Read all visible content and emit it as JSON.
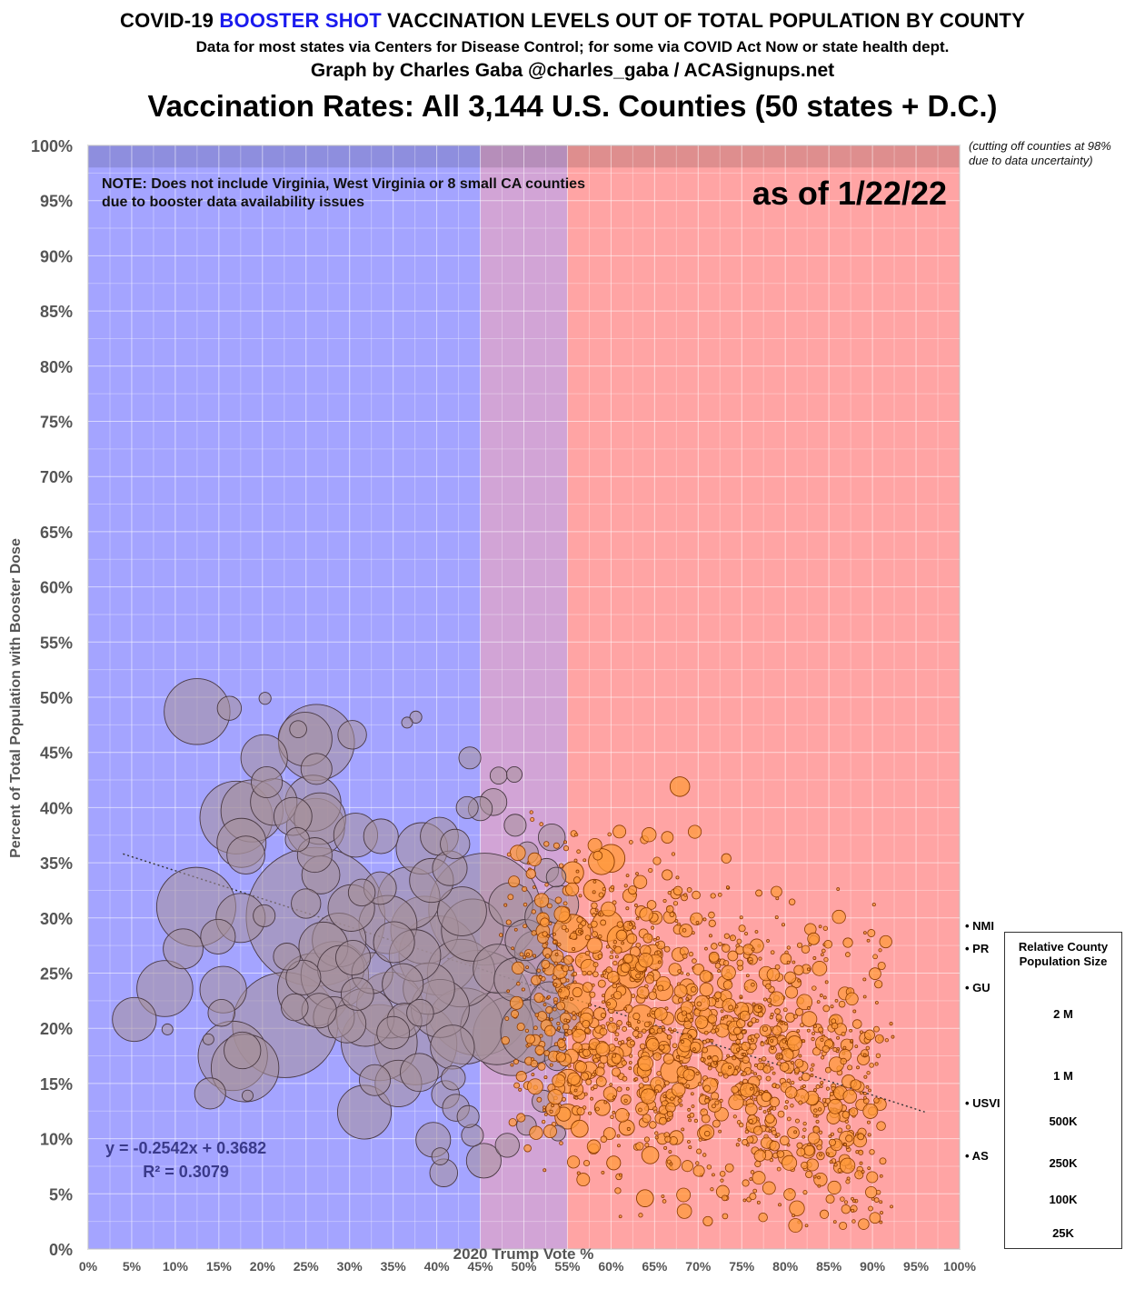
{
  "header": {
    "title_pre": "COVID-19 ",
    "title_highlight": "BOOSTER SHOT",
    "title_post": " VACCINATION LEVELS OUT OF TOTAL POPULATION BY COUNTY",
    "subtitle": "Data for most states via Centers for Disease Control; for some via COVID Act Now or state health dept.",
    "byline": "Graph by Charles Gaba @charles_gaba / ACASignups.net",
    "main_title": "Vaccination Rates: All 3,144 U.S. Counties (50 states + D.C.)"
  },
  "annotations": {
    "note_line1": "NOTE: Does not include Virginia, West Virginia or 8 small CA counties",
    "note_line2": "due to booster data availability issues",
    "as_of": "as of 1/22/22",
    "cutoff_line1": "(cutting off counties at 98%",
    "cutoff_line2": "due to data uncertainty)",
    "equation": "y = -0.2542x + 0.3682",
    "r_squared": "R² = 0.3079"
  },
  "territories": [
    {
      "label": "• NMI",
      "value": 29.5
    },
    {
      "label": "• PR",
      "value": 27.0
    },
    {
      "label": "• GU",
      "value": 23.7
    },
    {
      "label": "• USVI",
      "value": 13.2
    },
    {
      "label": "• AS",
      "value": 8.4
    }
  ],
  "legend": {
    "title_line1": "Relative County",
    "title_line2": "Population Size",
    "items": [
      {
        "label": "2 M",
        "population": 2000000
      },
      {
        "label": "1 M",
        "population": 1000000
      },
      {
        "label": "500K",
        "population": 500000
      },
      {
        "label": "250K",
        "population": 250000
      },
      {
        "label": "100K",
        "population": 100000
      },
      {
        "label": "25K",
        "population": 25000
      }
    ]
  },
  "colors": {
    "blue_zone": "#a4a4ff",
    "purple_zone": "#d2a4d6",
    "red_zone": "#ffa4a4",
    "blue_point": "#a6909a",
    "red_point": "#ff9a3c",
    "title_highlight": "#1a1aee"
  },
  "chart_data": {
    "type": "scatter",
    "xlabel": "2020 Trump Vote %",
    "ylabel": "Percent of Total Population with Booster Dose",
    "xlim": [
      0,
      100
    ],
    "ylim": [
      0,
      100
    ],
    "x_ticks": [
      "0%",
      "5%",
      "10%",
      "15%",
      "20%",
      "25%",
      "30%",
      "35%",
      "40%",
      "45%",
      "50%",
      "55%",
      "60%",
      "65%",
      "70%",
      "75%",
      "80%",
      "85%",
      "90%",
      "95%",
      "100%"
    ],
    "y_ticks": [
      "0%",
      "5%",
      "10%",
      "15%",
      "20%",
      "25%",
      "30%",
      "35%",
      "40%",
      "45%",
      "50%",
      "55%",
      "60%",
      "65%",
      "70%",
      "75%",
      "80%",
      "85%",
      "90%",
      "95%",
      "100%"
    ],
    "grid": true,
    "shaded_zones": [
      {
        "from": 0,
        "to": 45,
        "color": "blue"
      },
      {
        "from": 45,
        "to": 55,
        "color": "purple"
      },
      {
        "from": 55,
        "to": 100,
        "color": "red"
      }
    ],
    "cutoff_y": 98,
    "trendline": {
      "slope": -0.2542,
      "intercept": 0.3682,
      "x_range": [
        4,
        96
      ]
    },
    "legend_position": "right",
    "points": [
      {
        "x": 12.5,
        "y": 48.7,
        "pop": 900000
      },
      {
        "x": 16.2,
        "y": 49.0,
        "pop": 120000
      },
      {
        "x": 20.2,
        "y": 44.5,
        "pop": 450000
      },
      {
        "x": 24.1,
        "y": 47.1,
        "pop": 60000
      },
      {
        "x": 24.9,
        "y": 46.2,
        "pop": 600000
      },
      {
        "x": 26.2,
        "y": 45.9,
        "pop": 1200000
      },
      {
        "x": 26.2,
        "y": 43.5,
        "pop": 200000
      },
      {
        "x": 30.3,
        "y": 46.6,
        "pop": 170000
      },
      {
        "x": 20.5,
        "y": 42.3,
        "pop": 200000
      },
      {
        "x": 17.0,
        "y": 39.1,
        "pop": 1100000
      },
      {
        "x": 18.8,
        "y": 39.7,
        "pop": 800000
      },
      {
        "x": 21.3,
        "y": 40.5,
        "pop": 450000
      },
      {
        "x": 23.5,
        "y": 39.2,
        "pop": 300000
      },
      {
        "x": 25.8,
        "y": 40.4,
        "pop": 650000
      },
      {
        "x": 26.1,
        "y": 38.2,
        "pop": 700000
      },
      {
        "x": 26.6,
        "y": 39.0,
        "pop": 550000
      },
      {
        "x": 17.6,
        "y": 36.8,
        "pop": 500000
      },
      {
        "x": 18.1,
        "y": 35.7,
        "pop": 300000
      },
      {
        "x": 24.0,
        "y": 37.1,
        "pop": 120000
      },
      {
        "x": 26.0,
        "y": 35.7,
        "pop": 250000
      },
      {
        "x": 30.7,
        "y": 37.5,
        "pop": 400000
      },
      {
        "x": 33.6,
        "y": 37.4,
        "pop": 250000
      },
      {
        "x": 12.4,
        "y": 31.0,
        "pop": 1300000
      },
      {
        "x": 17.5,
        "y": 30.0,
        "pop": 500000
      },
      {
        "x": 14.9,
        "y": 28.3,
        "pop": 250000
      },
      {
        "x": 10.9,
        "y": 27.2,
        "pop": 330000
      },
      {
        "x": 8.8,
        "y": 23.6,
        "pop": 650000
      },
      {
        "x": 15.5,
        "y": 23.5,
        "pop": 450000
      },
      {
        "x": 5.3,
        "y": 20.8,
        "pop": 400000
      },
      {
        "x": 15.3,
        "y": 21.4,
        "pop": 150000
      },
      {
        "x": 16.6,
        "y": 17.5,
        "pop": 1000000
      },
      {
        "x": 18.0,
        "y": 16.4,
        "pop": 950000
      },
      {
        "x": 17.7,
        "y": 18.0,
        "pop": 280000
      },
      {
        "x": 14.0,
        "y": 14.1,
        "pop": 200000
      },
      {
        "x": 22.6,
        "y": 20.3,
        "pop": 2300000
      },
      {
        "x": 26.1,
        "y": 30.1,
        "pop": 4000000
      },
      {
        "x": 25.9,
        "y": 23.5,
        "pop": 1100000
      },
      {
        "x": 28.3,
        "y": 24.8,
        "pop": 950000
      },
      {
        "x": 27.0,
        "y": 27.4,
        "pop": 500000
      },
      {
        "x": 25.0,
        "y": 31.3,
        "pop": 180000
      },
      {
        "x": 26.7,
        "y": 33.9,
        "pop": 300000
      },
      {
        "x": 28.8,
        "y": 28.0,
        "pop": 600000
      },
      {
        "x": 30.2,
        "y": 30.9,
        "pop": 450000
      },
      {
        "x": 29.7,
        "y": 20.4,
        "pop": 300000
      },
      {
        "x": 31.8,
        "y": 21.0,
        "pop": 700000
      },
      {
        "x": 32.6,
        "y": 25.0,
        "pop": 350000
      },
      {
        "x": 33.4,
        "y": 18.7,
        "pop": 1200000
      },
      {
        "x": 34.6,
        "y": 22.1,
        "pop": 900000
      },
      {
        "x": 31.7,
        "y": 12.4,
        "pop": 600000
      },
      {
        "x": 32.9,
        "y": 15.3,
        "pop": 200000
      },
      {
        "x": 35.6,
        "y": 15.0,
        "pop": 450000
      },
      {
        "x": 37.6,
        "y": 18.6,
        "pop": 1400000
      },
      {
        "x": 38.0,
        "y": 16.0,
        "pop": 300000
      },
      {
        "x": 34.4,
        "y": 29.4,
        "pop": 700000
      },
      {
        "x": 36.8,
        "y": 31.8,
        "pop": 800000
      },
      {
        "x": 38.6,
        "y": 28.9,
        "pop": 950000
      },
      {
        "x": 40.2,
        "y": 26.6,
        "pop": 1300000
      },
      {
        "x": 39.4,
        "y": 33.4,
        "pop": 400000
      },
      {
        "x": 40.3,
        "y": 37.4,
        "pop": 300000
      },
      {
        "x": 38.3,
        "y": 36.3,
        "pop": 550000
      },
      {
        "x": 42.1,
        "y": 36.7,
        "pop": 180000
      },
      {
        "x": 41.5,
        "y": 34.5,
        "pop": 250000
      },
      {
        "x": 42.9,
        "y": 30.6,
        "pop": 500000
      },
      {
        "x": 44.1,
        "y": 28.9,
        "pop": 800000
      },
      {
        "x": 45.5,
        "y": 30.8,
        "pop": 2600000
      },
      {
        "x": 42.8,
        "y": 25.0,
        "pop": 950000
      },
      {
        "x": 44.8,
        "y": 22.3,
        "pop": 2300000
      },
      {
        "x": 43.2,
        "y": 20.2,
        "pop": 1200000
      },
      {
        "x": 46.9,
        "y": 20.0,
        "pop": 1100000
      },
      {
        "x": 48.7,
        "y": 19.3,
        "pop": 1300000
      },
      {
        "x": 51.0,
        "y": 19.7,
        "pop": 850000
      },
      {
        "x": 40.4,
        "y": 21.8,
        "pop": 700000
      },
      {
        "x": 39.1,
        "y": 23.6,
        "pop": 550000
      },
      {
        "x": 41.8,
        "y": 18.3,
        "pop": 400000
      },
      {
        "x": 37.5,
        "y": 26.6,
        "pop": 550000
      },
      {
        "x": 36.1,
        "y": 24.0,
        "pop": 350000
      },
      {
        "x": 35.1,
        "y": 27.8,
        "pop": 350000
      },
      {
        "x": 33.5,
        "y": 32.7,
        "pop": 220000
      },
      {
        "x": 31.4,
        "y": 32.3,
        "pop": 150000
      },
      {
        "x": 29.0,
        "y": 25.4,
        "pop": 450000
      },
      {
        "x": 30.4,
        "y": 26.4,
        "pop": 250000
      },
      {
        "x": 30.9,
        "y": 23.1,
        "pop": 220000
      },
      {
        "x": 28.2,
        "y": 21.0,
        "pop": 350000
      },
      {
        "x": 26.5,
        "y": 21.6,
        "pop": 250000
      },
      {
        "x": 23.7,
        "y": 21.9,
        "pop": 150000
      },
      {
        "x": 22.8,
        "y": 26.5,
        "pop": 150000
      },
      {
        "x": 24.7,
        "y": 24.6,
        "pop": 250000
      },
      {
        "x": 20.2,
        "y": 30.2,
        "pop": 100000
      },
      {
        "x": 35.0,
        "y": 19.6,
        "pop": 220000
      },
      {
        "x": 36.3,
        "y": 20.7,
        "pop": 250000
      },
      {
        "x": 38.1,
        "y": 21.4,
        "pop": 150000
      },
      {
        "x": 39.6,
        "y": 9.9,
        "pop": 250000
      },
      {
        "x": 40.8,
        "y": 6.9,
        "pop": 160000
      },
      {
        "x": 40.4,
        "y": 8.4,
        "pop": 60000
      },
      {
        "x": 44.1,
        "y": 10.3,
        "pop": 100000
      },
      {
        "x": 45.4,
        "y": 8.0,
        "pop": 250000
      },
      {
        "x": 42.2,
        "y": 12.8,
        "pop": 150000
      },
      {
        "x": 43.6,
        "y": 12.0,
        "pop": 100000
      },
      {
        "x": 41.0,
        "y": 14.0,
        "pop": 160000
      },
      {
        "x": 41.9,
        "y": 15.5,
        "pop": 120000
      },
      {
        "x": 43.5,
        "y": 40.0,
        "pop": 100000
      },
      {
        "x": 45.0,
        "y": 39.9,
        "pop": 120000
      },
      {
        "x": 46.5,
        "y": 40.5,
        "pop": 150000
      },
      {
        "x": 43.8,
        "y": 44.5,
        "pop": 100000
      },
      {
        "x": 37.6,
        "y": 48.2,
        "pop": 30000
      },
      {
        "x": 36.6,
        "y": 47.7,
        "pop": 25000
      },
      {
        "x": 20.3,
        "y": 49.9,
        "pop": 30000
      },
      {
        "x": 9.1,
        "y": 19.9,
        "pop": 25000
      },
      {
        "x": 13.8,
        "y": 19.0,
        "pop": 25000
      },
      {
        "x": 18.3,
        "y": 13.9,
        "pop": 25000
      },
      {
        "x": 47.1,
        "y": 42.9,
        "pop": 60000
      },
      {
        "x": 48.9,
        "y": 43.0,
        "pop": 50000
      },
      {
        "x": 49.0,
        "y": 38.4,
        "pop": 100000
      },
      {
        "x": 50.4,
        "y": 35.9,
        "pop": 100000
      },
      {
        "x": 52.6,
        "y": 34.3,
        "pop": 120000
      },
      {
        "x": 53.2,
        "y": 37.3,
        "pop": 150000
      },
      {
        "x": 53.7,
        "y": 33.7,
        "pop": 80000
      },
      {
        "x": 55.6,
        "y": 34.1,
        "pop": 100000
      },
      {
        "x": 48.5,
        "y": 31.2,
        "pop": 400000
      },
      {
        "x": 50.2,
        "y": 28.0,
        "pop": 350000
      },
      {
        "x": 52.3,
        "y": 30.1,
        "pop": 300000
      },
      {
        "x": 54.1,
        "y": 31.2,
        "pop": 300000
      },
      {
        "x": 47.0,
        "y": 25.4,
        "pop": 500000
      },
      {
        "x": 49.1,
        "y": 24.4,
        "pop": 400000
      },
      {
        "x": 51.4,
        "y": 26.9,
        "pop": 380000
      },
      {
        "x": 53.6,
        "y": 24.9,
        "pop": 300000
      },
      {
        "x": 55.5,
        "y": 28.6,
        "pop": 300000
      },
      {
        "x": 52.9,
        "y": 22.5,
        "pop": 300000
      },
      {
        "x": 54.7,
        "y": 21.0,
        "pop": 200000
      },
      {
        "x": 55.9,
        "y": 22.7,
        "pop": 200000
      },
      {
        "x": 53.8,
        "y": 17.3,
        "pop": 130000
      },
      {
        "x": 52.2,
        "y": 13.4,
        "pop": 100000
      },
      {
        "x": 55.0,
        "y": 12.0,
        "pop": 130000
      },
      {
        "x": 56.4,
        "y": 10.9,
        "pop": 60000
      },
      {
        "x": 55.1,
        "y": 15.2,
        "pop": 120000
      },
      {
        "x": 48.1,
        "y": 9.4,
        "pop": 120000
      },
      {
        "x": 50.3,
        "y": 11.2,
        "pop": 80000
      },
      {
        "x": 53.9,
        "y": 10.5,
        "pop": 50000
      },
      {
        "x": 58.9,
        "y": 35.1,
        "pop": 140000
      },
      {
        "x": 60.0,
        "y": 35.4,
        "pop": 160000
      },
      {
        "x": 67.9,
        "y": 41.9,
        "pop": 80000
      },
      {
        "x": 58.1,
        "y": 32.5,
        "pop": 100000
      },
      {
        "x": 59.6,
        "y": 29.3,
        "pop": 200000
      },
      {
        "x": 61.1,
        "y": 28.1,
        "pop": 150000
      },
      {
        "x": 62.3,
        "y": 24.9,
        "pop": 160000
      },
      {
        "x": 60.8,
        "y": 22.8,
        "pop": 150000
      },
      {
        "x": 63.5,
        "y": 20.9,
        "pop": 150000
      },
      {
        "x": 65.4,
        "y": 18.7,
        "pop": 120000
      },
      {
        "x": 67.0,
        "y": 16.1,
        "pop": 110000
      },
      {
        "x": 69.1,
        "y": 15.5,
        "pop": 100000
      },
      {
        "x": 71.6,
        "y": 17.5,
        "pop": 90000
      },
      {
        "x": 73.9,
        "y": 16.6,
        "pop": 70000
      },
      {
        "x": 75.0,
        "y": 14.3,
        "pop": 60000
      },
      {
        "x": 77.6,
        "y": 13.6,
        "pop": 50000
      },
      {
        "x": 64.8,
        "y": 26.7,
        "pop": 80000
      },
      {
        "x": 66.0,
        "y": 23.4,
        "pop": 80000
      },
      {
        "x": 68.4,
        "y": 21.1,
        "pop": 70000
      },
      {
        "x": 70.8,
        "y": 20.3,
        "pop": 60000
      },
      {
        "x": 64.5,
        "y": 8.5,
        "pop": 60000
      },
      {
        "x": 63.9,
        "y": 4.6,
        "pop": 60000
      },
      {
        "x": 60.3,
        "y": 7.8,
        "pop": 40000
      },
      {
        "x": 67.5,
        "y": 10.1,
        "pop": 40000
      },
      {
        "x": 59.0,
        "y": 12.8,
        "pop": 50000
      },
      {
        "x": 61.8,
        "y": 11.0,
        "pop": 50000
      },
      {
        "x": 66.5,
        "y": 13.6,
        "pop": 45000
      },
      {
        "x": 57.5,
        "y": 16.2,
        "pop": 60000
      }
    ]
  }
}
